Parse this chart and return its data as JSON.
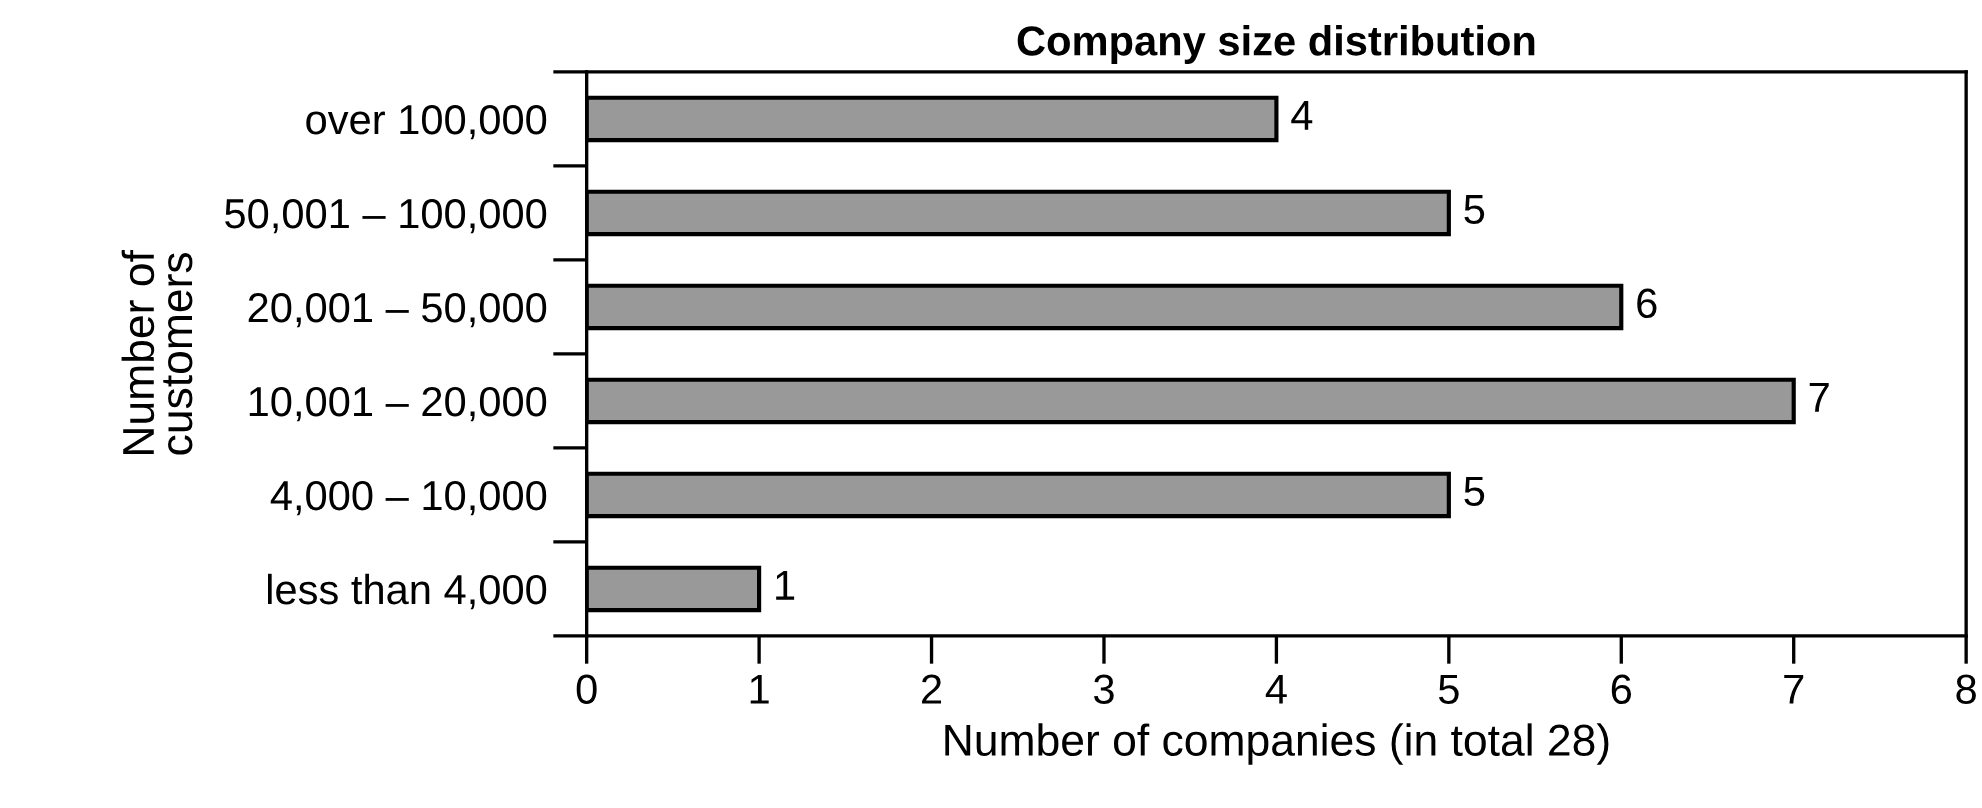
{
  "chart_data": {
    "type": "bar",
    "orientation": "horizontal",
    "title": "Company size distribution",
    "categories": [
      "over 100,000",
      "50,001 – 100,000",
      "20,001 – 50,000",
      "10,001 – 20,000",
      "4,000 – 10,000",
      "less than 4,000"
    ],
    "values": [
      4,
      5,
      6,
      7,
      5,
      1
    ],
    "color": "#999999",
    "xlabel": "Number of companies (in total 28)",
    "ylabel": "Number of\ncustomers",
    "xlim": [
      0,
      8
    ],
    "xticks": [
      0,
      1,
      2,
      3,
      4,
      5,
      6,
      7,
      8
    ],
    "grid": false,
    "data_labels": true
  }
}
